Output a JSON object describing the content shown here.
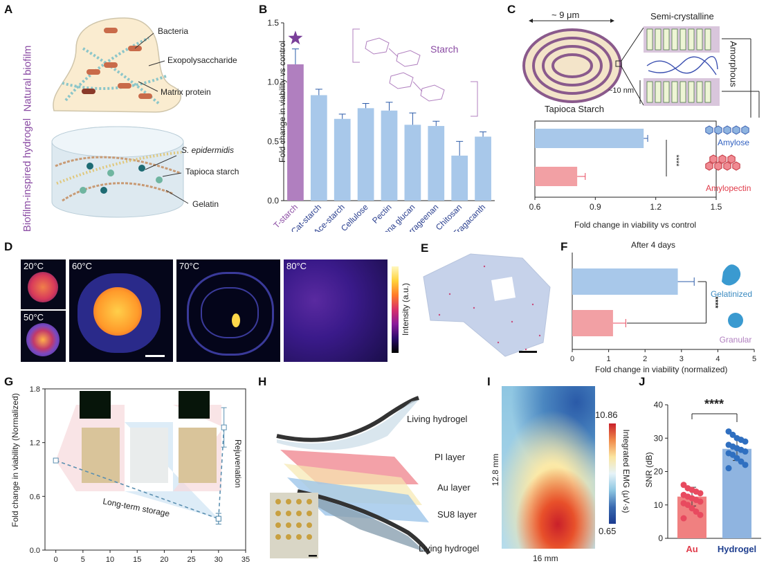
{
  "panels": {
    "A": {
      "label": "A",
      "top_side": "Natural biofilm",
      "bottom_side": "Biofilm-inspired hydrogel",
      "top_callouts": [
        "Bacteria",
        "Exopolysaccharide",
        "Matrix protein"
      ],
      "bottom_callouts": [
        "S. epidermidis",
        "Tapioca starch",
        "Gelatin"
      ]
    },
    "B": {
      "label": "B",
      "structure_label": "Starch",
      "ylabel": "Fold change in viability vs control"
    },
    "C": {
      "label": "C",
      "size_label": "~ 9 μm",
      "semi": "Semi-crystalline",
      "amorphous": "Amorphous",
      "nm": "~10 nm",
      "granule": "Tapioca Starch",
      "xlabel": "Fold change in viability vs control",
      "sig": "****"
    },
    "D": {
      "label": "D",
      "temps": [
        "20°C",
        "50°C",
        "60°C",
        "70°C",
        "80°C"
      ],
      "colorbar": "Intensity (a.u.)"
    },
    "E": {
      "label": "E"
    },
    "F": {
      "label": "F",
      "title": "After 4 days",
      "xlabel": "Fold change in viability (normalized)",
      "sig": "****"
    },
    "G": {
      "label": "G",
      "ylabel": "Fold change in viability (Normalized)",
      "storage": "Long-term storage",
      "rejuv": "Rejuvenation"
    },
    "H": {
      "label": "H",
      "layers": [
        "Living hydrogel",
        "PI layer",
        "Au layer",
        "SU8 layer",
        "Living hydrogel"
      ]
    },
    "I": {
      "label": "I",
      "ylab": "12.8 mm",
      "xlab": "16 mm",
      "cb_title": "Integrated EMG (μV·s)",
      "cb_max": "10.86",
      "cb_min": "0.65"
    },
    "J": {
      "label": "J",
      "ylabel": "SNR (dB)",
      "sig": "****"
    }
  },
  "chart_data": [
    {
      "panel": "B",
      "type": "bar",
      "categories": [
        "T-starch",
        "Cat-starch",
        "Ace-starch",
        "Cellulose",
        "Pectin",
        "Euglena glucan",
        "k-Carrageenan",
        "Chitosan",
        "Tragacanth"
      ],
      "values": [
        1.15,
        0.89,
        0.69,
        0.78,
        0.76,
        0.64,
        0.63,
        0.38,
        0.54
      ],
      "errors": [
        0.13,
        0.05,
        0.04,
        0.04,
        0.07,
        0.1,
        0.04,
        0.12,
        0.04
      ],
      "ylabel": "Fold change in viability vs control",
      "ylim": [
        0,
        1.5
      ],
      "yticks": [
        "0.0",
        "0.5",
        "1.0",
        "1.5"
      ],
      "highlight_color": "#b07fbf",
      "bar_color": "#a8c8ea"
    },
    {
      "panel": "C",
      "type": "bar",
      "orientation": "horizontal",
      "categories": [
        "Amylose",
        "Amylopectin"
      ],
      "values": [
        1.14,
        0.81
      ],
      "errors": [
        0.02,
        0.04
      ],
      "xlabel": "Fold change in viability vs control",
      "xlim": [
        0.6,
        1.5
      ],
      "xticks": [
        "0.6",
        "0.9",
        "1.2",
        "1.5"
      ],
      "colors": [
        "#a8c8ea",
        "#f2a0a4"
      ]
    },
    {
      "panel": "F",
      "type": "bar",
      "orientation": "horizontal",
      "title": "After 4 days",
      "categories": [
        "Gelatinized",
        "Granular"
      ],
      "values": [
        2.9,
        1.12
      ],
      "errors": [
        0.45,
        0.35
      ],
      "xlabel": "Fold change in viability (normalized)",
      "xlim": [
        0,
        5
      ],
      "xticks": [
        "0",
        "1",
        "2",
        "3",
        "4",
        "5"
      ],
      "colors": [
        "#a8c8ea",
        "#f2a0a4"
      ]
    },
    {
      "panel": "G",
      "type": "line",
      "series": [
        {
          "name": "Long-term storage",
          "x": [
            0,
            30
          ],
          "y": [
            1.0,
            0.35
          ],
          "errors": [
            0.0,
            0.06
          ]
        },
        {
          "name": "Rejuvenation",
          "x": [
            30,
            31
          ],
          "y": [
            0.35,
            1.37
          ],
          "errors": [
            0.06,
            0.22
          ]
        }
      ],
      "ylabel": "Fold change in viability (Normalized)",
      "xlim": [
        -2,
        35
      ],
      "ylim": [
        0,
        1.8
      ],
      "xticks": [
        "0",
        "5",
        "10",
        "15",
        "20",
        "25",
        "30",
        "35"
      ],
      "yticks": [
        "0.0",
        "0.6",
        "1.2",
        "1.8"
      ],
      "color": "#5a8fb0"
    },
    {
      "panel": "J",
      "type": "bar",
      "categories": [
        "Au",
        "Hydrogel"
      ],
      "values": [
        12.5,
        26.8
      ],
      "errors": [
        2.8,
        3.5
      ],
      "points": [
        [
          16,
          15,
          14.5,
          14,
          13.5,
          13,
          12.5,
          12,
          11.5,
          11,
          10.5,
          10,
          9,
          8,
          7,
          6
        ],
        [
          32,
          31,
          30,
          29.5,
          29,
          28,
          27.5,
          27,
          26.5,
          26,
          25.5,
          25,
          24,
          23,
          22,
          21
        ]
      ],
      "ylabel": "SNR (dB)",
      "ylim": [
        0,
        40
      ],
      "yticks": [
        "0",
        "10",
        "20",
        "30",
        "40"
      ],
      "colors": [
        "#f08080",
        "#8fb4e0"
      ],
      "point_colors": [
        "#e84a5f",
        "#2f6fc0"
      ],
      "label_colors": [
        "#e03b4a",
        "#1f3f8f"
      ]
    }
  ]
}
